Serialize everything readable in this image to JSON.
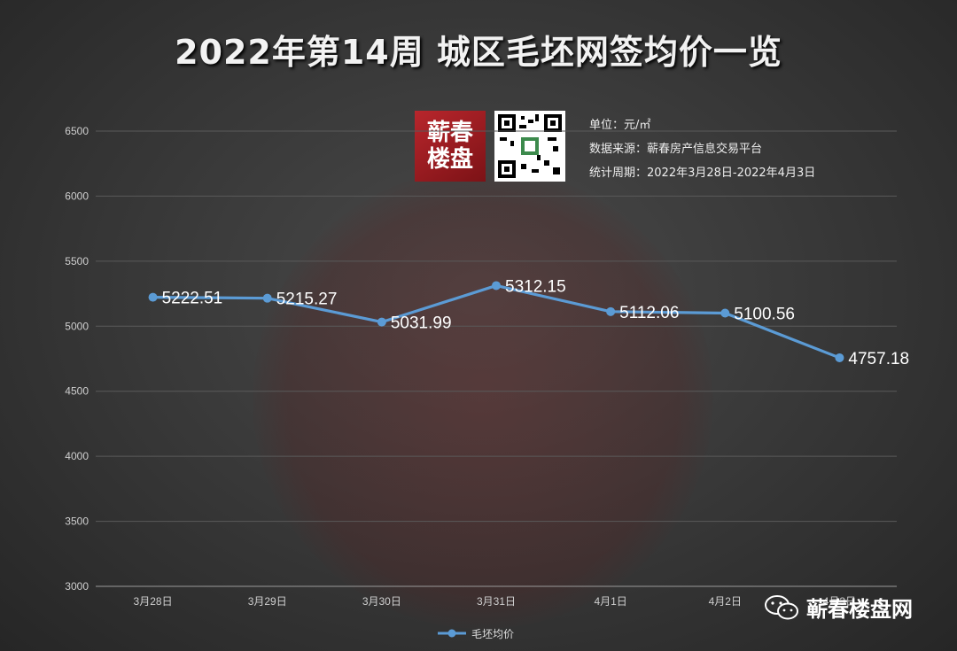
{
  "title": "2022年第14周 城区毛坯网签均价一览",
  "logo": {
    "line1": "蕲春",
    "line2": "楼盘"
  },
  "info": {
    "unit": "单位：元/㎡",
    "source": "数据来源：蕲春房产信息交易平台",
    "period": "统计周期：2022年3月28日-2022年4月3日"
  },
  "footer_brand": "蕲春楼盘网",
  "colors": {
    "line": "#5b9bd5",
    "grid": "#5a5a5a"
  },
  "chart_data": {
    "type": "line",
    "categories": [
      "3月28日",
      "3月29日",
      "3月30日",
      "3月31日",
      "4月1日",
      "4月2日",
      "4月3日"
    ],
    "series": [
      {
        "name": "毛坯均价",
        "values": [
          5222.51,
          5215.27,
          5031.99,
          5312.15,
          5112.06,
          5100.56,
          4757.18
        ]
      }
    ],
    "data_labels": [
      "5222.51",
      "5215.27",
      "5031.99",
      "5312.15",
      "5112.06",
      "5100.56",
      "4757.18"
    ],
    "ylim": [
      3000,
      6500
    ],
    "yticks": [
      3000,
      3500,
      4000,
      4500,
      5000,
      5500,
      6000,
      6500
    ],
    "grid": true,
    "legend": "bottom"
  }
}
